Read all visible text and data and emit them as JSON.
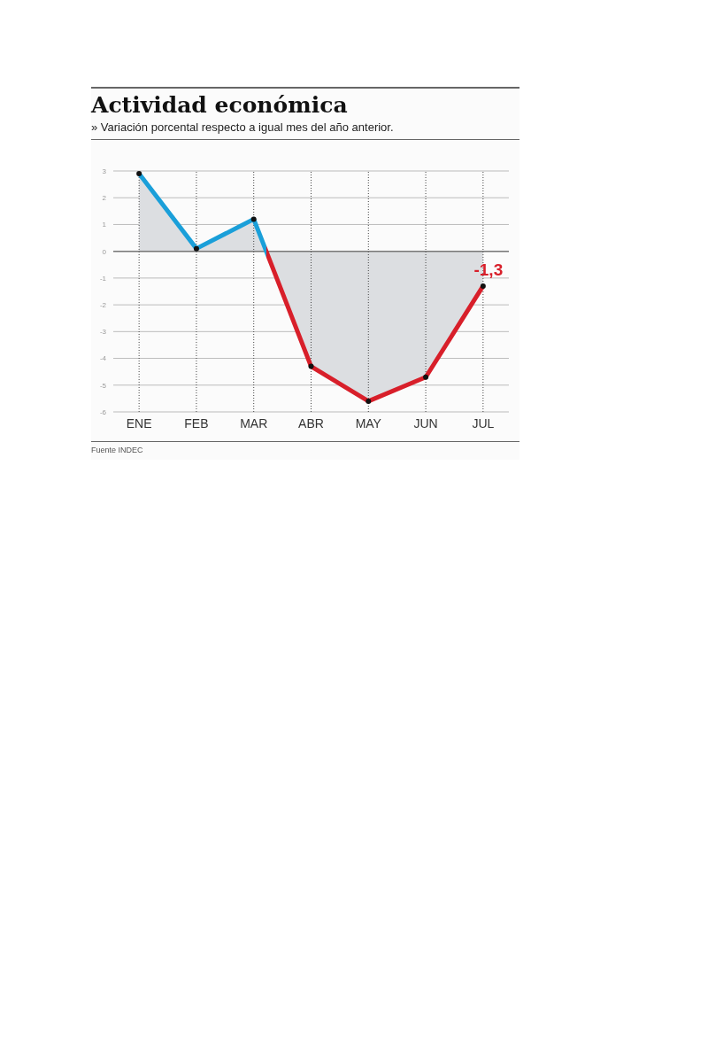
{
  "chart_data": {
    "type": "area",
    "title": "Actividad económica",
    "subtitle": "» Variación porcental respecto a igual mes del año anterior.",
    "annotations": [
      "Fuente INDEC"
    ],
    "categories": [
      "ENE",
      "FEB",
      "MAR",
      "ABR",
      "MAY",
      "JUN",
      "JUL"
    ],
    "series": [
      {
        "color": "#dcdee1",
        "colors": [
          "#1a9fd9",
          "#1a9fd9",
          "#1a9fd9",
          "#d81f2a",
          "#d81f2a",
          "#d81f2a",
          "#d81f2a"
        ],
        "values": [
          2.9,
          0.1,
          1.2,
          -4.3,
          -5.6,
          -4.7,
          -1.3
        ],
        "value_labels": [
          null,
          null,
          null,
          null,
          null,
          null,
          "-1,3"
        ]
      }
    ],
    "ylim": [
      -6,
      3
    ],
    "yticks": [
      -6,
      -5,
      -4,
      -3,
      -2,
      -1,
      0,
      1,
      2,
      3
    ],
    "grid": true,
    "marker": "circle",
    "line_style": "solid",
    "legend": false,
    "ref_lines": [
      {
        "axis": "y",
        "value": 0,
        "color": "#777777"
      }
    ]
  }
}
